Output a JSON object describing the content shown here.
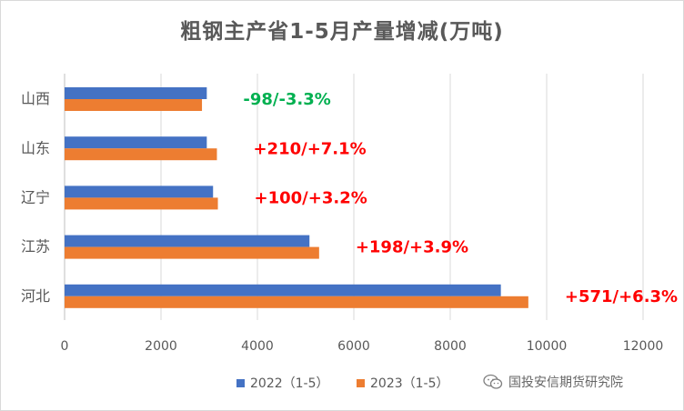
{
  "chart_data": {
    "type": "bar",
    "orientation": "horizontal",
    "title": "粗钢主产省1-5月产量增减(万吨)",
    "categories": [
      "山西",
      "山东",
      "辽宁",
      "江苏",
      "河北"
    ],
    "series": [
      {
        "name": "2022（1-5）",
        "color": "#4472c4",
        "values": [
          2950,
          2950,
          3080,
          5080,
          9050
        ]
      },
      {
        "name": "2023（1-5）",
        "color": "#ed7d31",
        "values": [
          2850,
          3160,
          3180,
          5280,
          9620
        ]
      }
    ],
    "annotations": [
      {
        "text": "-98/-3.3%",
        "color": "#00b050"
      },
      {
        "text": "+210/+7.1%",
        "color": "#ff0000"
      },
      {
        "text": "+100/+3.2%",
        "color": "#ff0000"
      },
      {
        "text": "+198/+3.9%",
        "color": "#ff0000"
      },
      {
        "text": "+571/+6.3%",
        "color": "#ff0000"
      }
    ],
    "xlim": [
      0,
      12000
    ],
    "xticks": [
      0,
      2000,
      4000,
      6000,
      8000,
      10000,
      12000
    ],
    "xtick_labels": [
      "0",
      "2000",
      "4000",
      "6000",
      "8000",
      "10000",
      "12000"
    ],
    "grid": true,
    "legend_position": "bottom"
  },
  "watermark": {
    "text": "国投安信期货研究院",
    "icon": "wechat-icon"
  }
}
